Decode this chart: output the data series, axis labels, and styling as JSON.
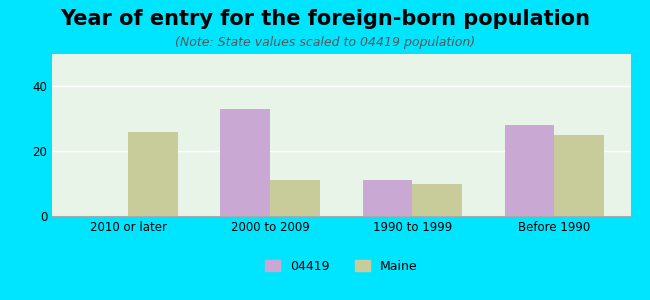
{
  "title": "Year of entry for the foreign-born population",
  "subtitle": "(Note: State values scaled to 04419 population)",
  "categories": [
    "2010 or later",
    "2000 to 2009",
    "1990 to 1999",
    "Before 1990"
  ],
  "series_04419": [
    0,
    33,
    11,
    28
  ],
  "series_maine": [
    26,
    11,
    10,
    25
  ],
  "color_04419": "#c9a8d4",
  "color_maine": "#c8cc9a",
  "ylim": [
    0,
    50
  ],
  "yticks": [
    0,
    20,
    40
  ],
  "background_outer": "#00e5ff",
  "background_inner": "#e8f4e8",
  "bar_width": 0.35,
  "legend_04419": "04419",
  "legend_maine": "Maine",
  "title_fontsize": 15,
  "subtitle_fontsize": 9,
  "tick_fontsize": 8.5,
  "legend_fontsize": 9
}
